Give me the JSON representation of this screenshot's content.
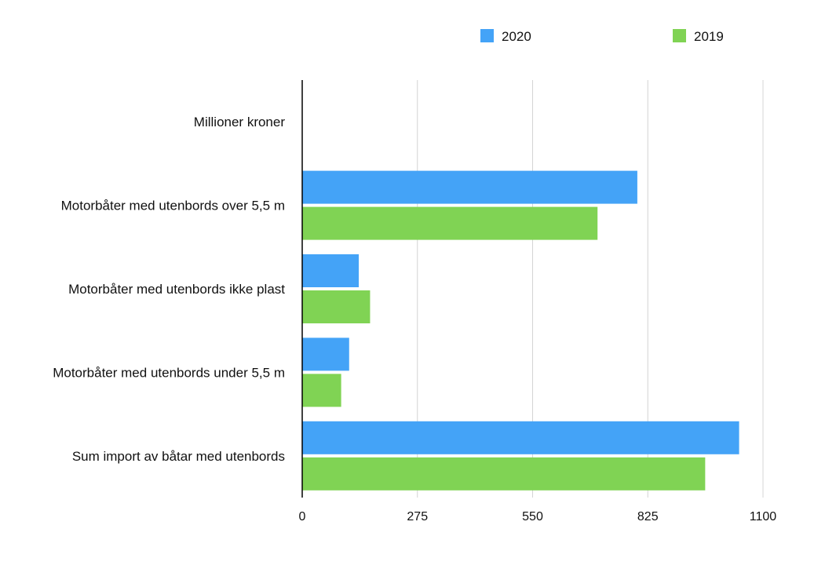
{
  "chart_data": {
    "type": "bar",
    "orientation": "horizontal",
    "categories": [
      "Millioner kroner",
      "Motorbåter med utenbords over 5,5 m",
      "Motorbåter med utenbords ikke plast",
      "Motorbåter med utenbords under 5,5 m",
      "Sum import av båtar med utenbords"
    ],
    "series": [
      {
        "name": "2020",
        "color": "#44a3f7",
        "values": [
          null,
          800,
          135,
          112,
          1043
        ]
      },
      {
        "name": "2019",
        "color": "#80d354",
        "values": [
          null,
          705,
          162,
          93,
          962
        ]
      }
    ],
    "xlim": [
      0,
      1100
    ],
    "xticks": [
      "0",
      "275",
      "550",
      "825",
      "1100"
    ],
    "grid": true,
    "legend_position": "top-right"
  }
}
